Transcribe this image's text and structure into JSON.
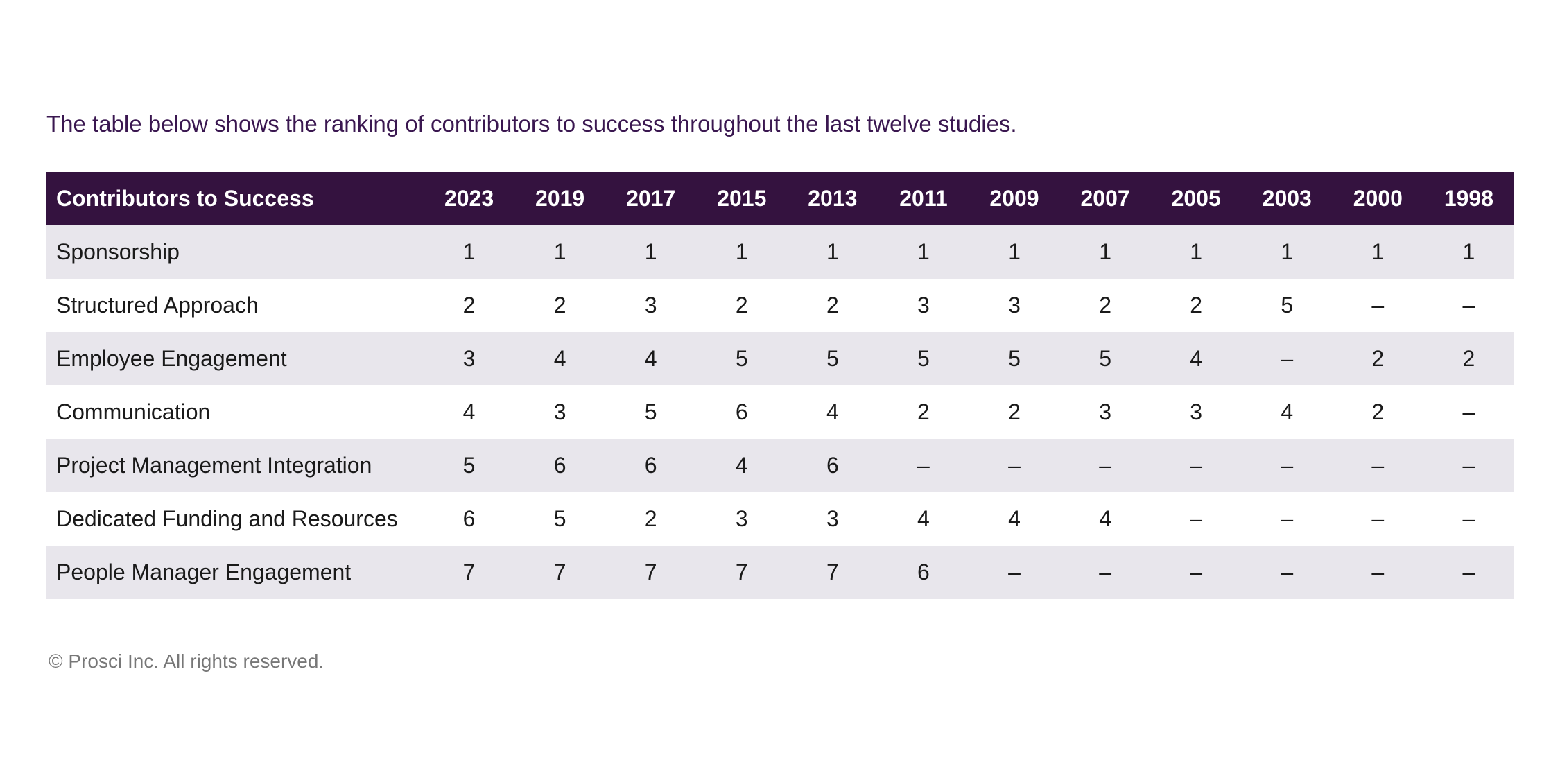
{
  "intro": "The table below shows the ranking of contributors to success throughout the last twelve studies.",
  "table": {
    "header": [
      "Contributors to Success",
      2023,
      2019,
      2017,
      2015,
      2013,
      2011,
      2009,
      2007,
      2005,
      2003,
      2000,
      1998
    ],
    "rows": [
      [
        "Sponsorship",
        1,
        1,
        1,
        1,
        1,
        1,
        1,
        1,
        1,
        1,
        1,
        1
      ],
      [
        "Structured Approach",
        2,
        2,
        3,
        2,
        2,
        3,
        3,
        2,
        2,
        5,
        "–",
        "–"
      ],
      [
        "Employee Engagement",
        3,
        4,
        4,
        5,
        5,
        5,
        5,
        5,
        4,
        "–",
        2,
        2
      ],
      [
        "Communication",
        4,
        3,
        5,
        6,
        4,
        2,
        2,
        3,
        3,
        4,
        2,
        "–"
      ],
      [
        "Project Management Integration",
        5,
        6,
        6,
        4,
        6,
        "–",
        "–",
        "–",
        "–",
        "–",
        "–",
        "–"
      ],
      [
        "Dedicated Funding and Resources",
        6,
        5,
        2,
        3,
        3,
        4,
        4,
        4,
        "–",
        "–",
        "–",
        "–"
      ],
      [
        "People Manager Engagement",
        7,
        7,
        7,
        7,
        7,
        6,
        "–",
        "–",
        "–",
        "–",
        "–",
        "–"
      ]
    ]
  },
  "footer": "© Prosci Inc. All rights reserved."
}
